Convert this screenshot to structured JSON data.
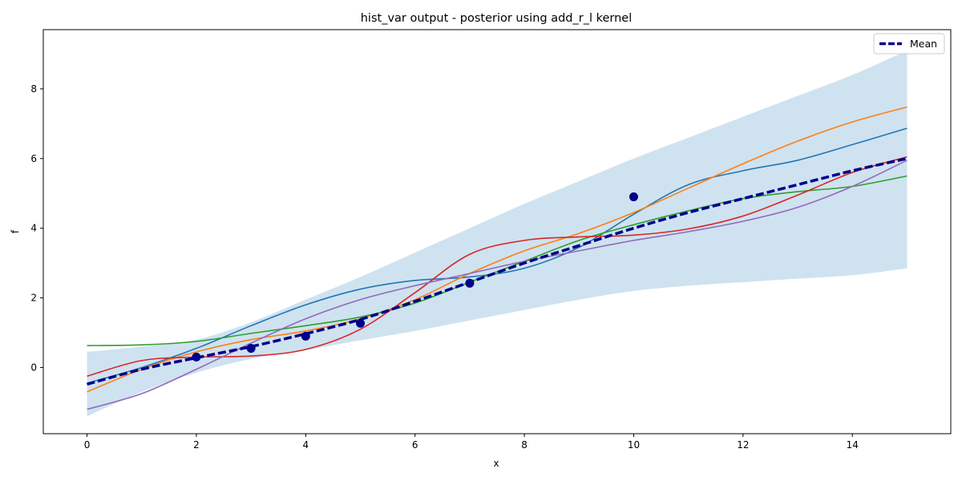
{
  "chart_data": {
    "type": "line",
    "title": "hist_var output - posterior using add_r_l kernel",
    "xlabel": "x",
    "ylabel": "f",
    "xlim": [
      -0.8,
      15.8
    ],
    "ylim": [
      -1.9,
      9.7
    ],
    "xticks": [
      0,
      2,
      4,
      6,
      8,
      10,
      12,
      14
    ],
    "yticks": [
      0,
      2,
      4,
      6,
      8
    ],
    "grid": false,
    "legend": {
      "location": "upper right",
      "entries": [
        "Mean"
      ]
    },
    "confidence_band": {
      "color": "#cfe2f0",
      "x": [
        0,
        1,
        2,
        3,
        4,
        5,
        6,
        7,
        8,
        9,
        10,
        11,
        12,
        13,
        14,
        15
      ],
      "lower": [
        -1.4,
        -0.7,
        -0.15,
        0.25,
        0.5,
        0.78,
        1.05,
        1.35,
        1.65,
        1.95,
        2.2,
        2.35,
        2.45,
        2.55,
        2.65,
        2.85
      ],
      "upper": [
        0.45,
        0.6,
        0.8,
        1.3,
        1.95,
        2.6,
        3.3,
        4.0,
        4.7,
        5.35,
        6.0,
        6.6,
        7.2,
        7.8,
        8.4,
        9.1
      ]
    },
    "mean": {
      "name": "Mean",
      "color": "#00008b",
      "x": [
        0,
        1,
        2,
        3,
        4,
        5,
        6,
        7,
        8,
        9,
        10,
        11,
        12,
        13,
        14,
        15
      ],
      "y": [
        -0.48,
        -0.05,
        0.28,
        0.6,
        0.97,
        1.38,
        1.9,
        2.45,
        3.0,
        3.5,
        4.0,
        4.45,
        4.85,
        5.25,
        5.65,
        6.0
      ]
    },
    "observations": {
      "color": "#00008b",
      "x": [
        2,
        3,
        4,
        5,
        7,
        10
      ],
      "y": [
        0.3,
        0.55,
        0.9,
        1.27,
        2.42,
        4.9
      ]
    },
    "samples": [
      {
        "color": "#1f77b4",
        "x": [
          0,
          1,
          2,
          3,
          4,
          5,
          6,
          7,
          8,
          9,
          10,
          11,
          12,
          13,
          14,
          15
        ],
        "y": [
          -0.45,
          0.0,
          0.55,
          1.2,
          1.8,
          2.25,
          2.5,
          2.6,
          2.85,
          3.45,
          4.4,
          5.25,
          5.65,
          5.95,
          6.4,
          6.87
        ]
      },
      {
        "color": "#ff7f0e",
        "x": [
          0,
          1,
          2,
          3,
          4,
          5,
          6,
          7,
          8,
          9,
          10,
          11,
          12,
          13,
          14,
          15
        ],
        "y": [
          -0.7,
          -0.05,
          0.45,
          0.8,
          1.05,
          1.4,
          1.95,
          2.7,
          3.35,
          3.85,
          4.45,
          5.15,
          5.85,
          6.5,
          7.05,
          7.48
        ]
      },
      {
        "color": "#2ca02c",
        "x": [
          0,
          1,
          2,
          3,
          4,
          5,
          6,
          7,
          8,
          9,
          10,
          11,
          12,
          13,
          14,
          15
        ],
        "y": [
          0.63,
          0.65,
          0.75,
          0.98,
          1.2,
          1.45,
          1.85,
          2.45,
          3.05,
          3.65,
          4.1,
          4.5,
          4.85,
          5.05,
          5.2,
          5.5
        ]
      },
      {
        "color": "#d62728",
        "x": [
          0,
          1,
          2,
          3,
          4,
          5,
          6,
          7,
          8,
          9,
          10,
          11,
          12,
          13,
          14,
          15
        ],
        "y": [
          -0.25,
          0.2,
          0.3,
          0.33,
          0.52,
          1.1,
          2.15,
          3.25,
          3.65,
          3.75,
          3.8,
          3.98,
          4.35,
          4.95,
          5.6,
          6.05
        ]
      },
      {
        "color": "#9467bd",
        "x": [
          0,
          1,
          2,
          3,
          4,
          5,
          6,
          7,
          8,
          9,
          10,
          11,
          12,
          13,
          14,
          15
        ],
        "y": [
          -1.2,
          -0.75,
          -0.05,
          0.7,
          1.4,
          1.95,
          2.35,
          2.7,
          3.05,
          3.35,
          3.65,
          3.9,
          4.2,
          4.6,
          5.2,
          5.95
        ]
      }
    ]
  }
}
